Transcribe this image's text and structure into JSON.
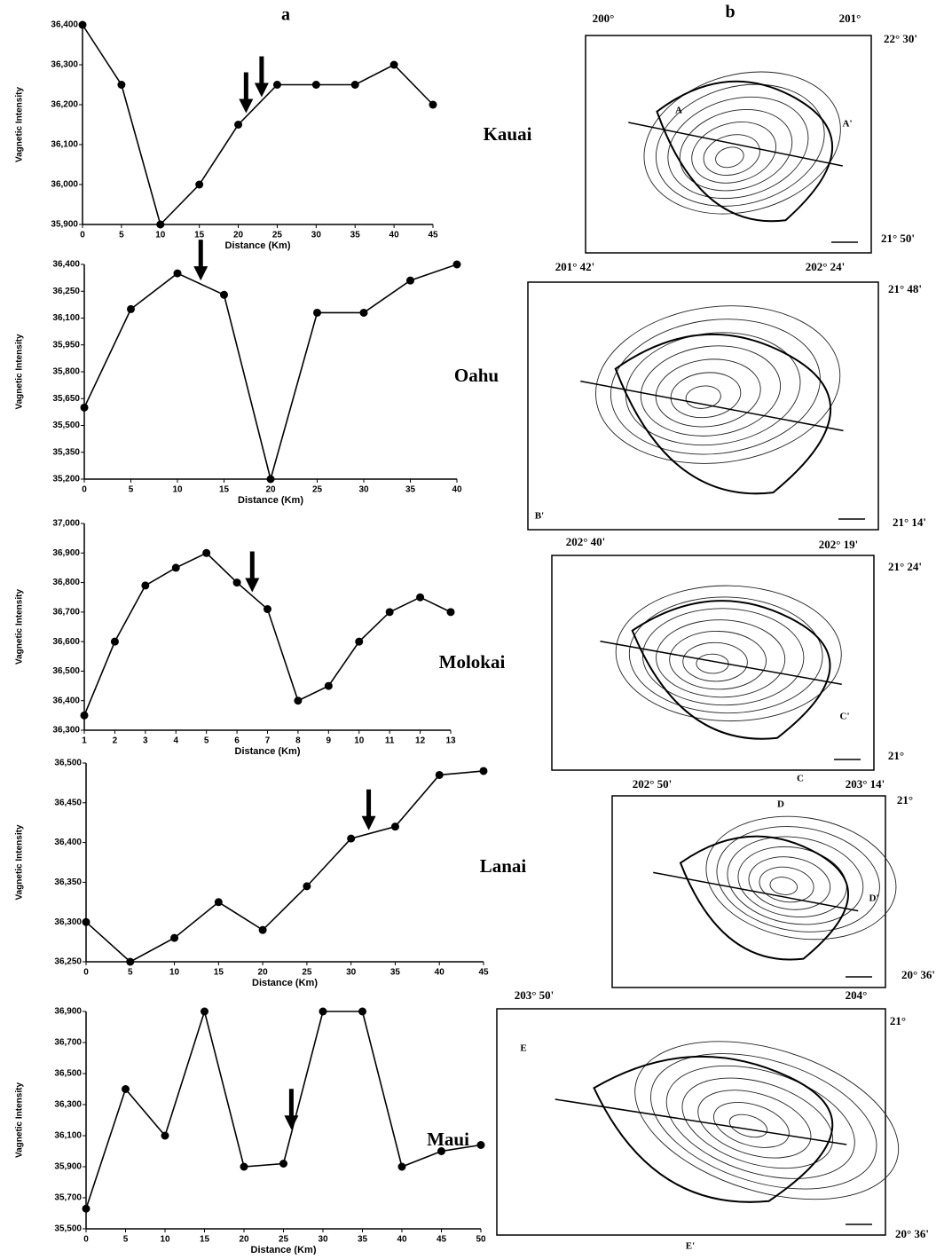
{
  "panel_labels": [
    "a",
    "b"
  ],
  "chart_data": [
    {
      "type": "line",
      "title": "Kauai",
      "xlabel": "Distance (Km)",
      "ylabel": "Vagnetic Intensity",
      "x": [
        0,
        5,
        10,
        15,
        20,
        25,
        30,
        35,
        40,
        45
      ],
      "values": [
        36400,
        36250,
        35900,
        36000,
        36150,
        36250,
        36250,
        36250,
        36300,
        36200
      ],
      "xlim": [
        0,
        45
      ],
      "xticks": [
        0,
        5,
        10,
        15,
        20,
        25,
        30,
        35,
        40,
        45
      ],
      "ylim": [
        35900,
        36400
      ],
      "yticks": [
        {
          "value": 35900,
          "label": "35,900"
        },
        {
          "value": 36000,
          "label": "36,000"
        },
        {
          "value": 36100,
          "label": "36,100"
        },
        {
          "value": 36200,
          "label": "36,200"
        },
        {
          "value": 36300,
          "label": "36,300"
        },
        {
          "value": 36400,
          "label": "36,400"
        }
      ],
      "arrows": [
        21,
        23
      ],
      "color": "#000000"
    },
    {
      "type": "line",
      "title": "Oahu",
      "xlabel": "Distance (Km)",
      "ylabel": "Vagnetic Intensity",
      "x": [
        0,
        5,
        10,
        15,
        20,
        25,
        30,
        35,
        40
      ],
      "values": [
        35600,
        36150,
        36350,
        36230,
        35200,
        36130,
        36130,
        36310,
        36400
      ],
      "xlim": [
        0,
        40
      ],
      "xticks": [
        0,
        5,
        10,
        15,
        20,
        25,
        30,
        35,
        40
      ],
      "ylim": [
        35200,
        36400
      ],
      "yticks": [
        {
          "value": 35200,
          "label": "35,200"
        },
        {
          "value": 35350,
          "label": "35,350"
        },
        {
          "value": 35500,
          "label": "35,500"
        },
        {
          "value": 35650,
          "label": "35,650"
        },
        {
          "value": 35800,
          "label": "35,800"
        },
        {
          "value": 35950,
          "label": "35,950"
        },
        {
          "value": 36100,
          "label": "36,100"
        },
        {
          "value": 36250,
          "label": "36,250"
        },
        {
          "value": 36400,
          "label": "36,400"
        }
      ],
      "arrows": [
        12.5
      ],
      "color": "#000000"
    },
    {
      "type": "line",
      "title": "Molokai",
      "xlabel": "Distance (Km)",
      "ylabel": "Vagnetic Intensity",
      "x": [
        1,
        2,
        3,
        4,
        5,
        6,
        7,
        8,
        9,
        10,
        11,
        12,
        13
      ],
      "values": [
        36350,
        36600,
        36790,
        36850,
        36900,
        36800,
        36710,
        36400,
        36450,
        36600,
        36700,
        36750,
        36700
      ],
      "xlim": [
        1,
        13
      ],
      "xticks": [
        1,
        2,
        3,
        4,
        5,
        6,
        7,
        8,
        9,
        10,
        11,
        12,
        13
      ],
      "ylim": [
        36300,
        37000
      ],
      "yticks": [
        {
          "value": 36300,
          "label": "36,300"
        },
        {
          "value": 36400,
          "label": "36,400"
        },
        {
          "value": 36500,
          "label": "36,500"
        },
        {
          "value": 36600,
          "label": "36,600"
        },
        {
          "value": 36700,
          "label": "36,700"
        },
        {
          "value": 36800,
          "label": "36,800"
        },
        {
          "value": 36900,
          "label": "36,900"
        },
        {
          "value": 37000,
          "label": "37,000"
        }
      ],
      "arrows": [
        6.5
      ],
      "color": "#000000"
    },
    {
      "type": "line",
      "title": "Lanai",
      "xlabel": "Distance (Km)",
      "ylabel": "Vagnetic Intensity",
      "x": [
        0,
        5,
        10,
        15,
        20,
        25,
        30,
        35,
        40,
        45
      ],
      "values": [
        36300,
        36250,
        36280,
        36325,
        36290,
        36345,
        36405,
        36420,
        36485,
        36490
      ],
      "xlim": [
        0,
        45
      ],
      "xticks": [
        0,
        5,
        10,
        15,
        20,
        25,
        30,
        35,
        40,
        45
      ],
      "ylim": [
        36250,
        36500
      ],
      "yticks": [
        {
          "value": 36250,
          "label": "36,250"
        },
        {
          "value": 36300,
          "label": "36,300"
        },
        {
          "value": 36350,
          "label": "36,350"
        },
        {
          "value": 36400,
          "label": "36,400"
        },
        {
          "value": 36450,
          "label": "36,450"
        },
        {
          "value": 36500,
          "label": "36,500"
        }
      ],
      "arrows": [
        32
      ],
      "color": "#000000"
    },
    {
      "type": "line",
      "title": "Maui",
      "xlabel": "Distance (Km)",
      "ylabel": "Vagnetic Intensity",
      "x": [
        0,
        5,
        10,
        15,
        20,
        25,
        30,
        35,
        40,
        45,
        50
      ],
      "values": [
        35630,
        36400,
        36100,
        36900,
        35900,
        35920,
        36900,
        36900,
        35900,
        36000,
        36040
      ],
      "xlim": [
        0,
        50
      ],
      "xticks": [
        0,
        5,
        10,
        15,
        20,
        25,
        30,
        35,
        40,
        45,
        50
      ],
      "ylim": [
        35500,
        36900
      ],
      "yticks": [
        {
          "value": 35500,
          "label": "35,500"
        },
        {
          "value": 35700,
          "label": "35,700"
        },
        {
          "value": 35900,
          "label": "35,900"
        },
        {
          "value": 36100,
          "label": "36,100"
        },
        {
          "value": 36300,
          "label": "36,300"
        },
        {
          "value": 36500,
          "label": "36,500"
        },
        {
          "value": 36700,
          "label": "36,700"
        },
        {
          "value": 36900,
          "label": "36,900"
        }
      ],
      "arrows": [
        26
      ],
      "color": "#000000"
    }
  ],
  "maps": [
    {
      "labels": [
        "200°",
        "201°",
        "22° 30'",
        "21° 50'",
        "A",
        "A'"
      ]
    },
    {
      "labels": [
        "201° 42'",
        "202° 24'",
        "21° 48'",
        "21° 14'",
        "B'"
      ]
    },
    {
      "labels": [
        "202° 40'",
        "202° 19'",
        "21° 24'",
        "21°",
        "C",
        "C'"
      ]
    },
    {
      "labels": [
        "202° 50'",
        "203° 14'",
        "21°",
        "20° 36'",
        "D",
        "D'"
      ]
    },
    {
      "labels": [
        "203° 50'",
        "204°",
        "21°",
        "20° 36'",
        "E",
        "E'"
      ]
    }
  ]
}
